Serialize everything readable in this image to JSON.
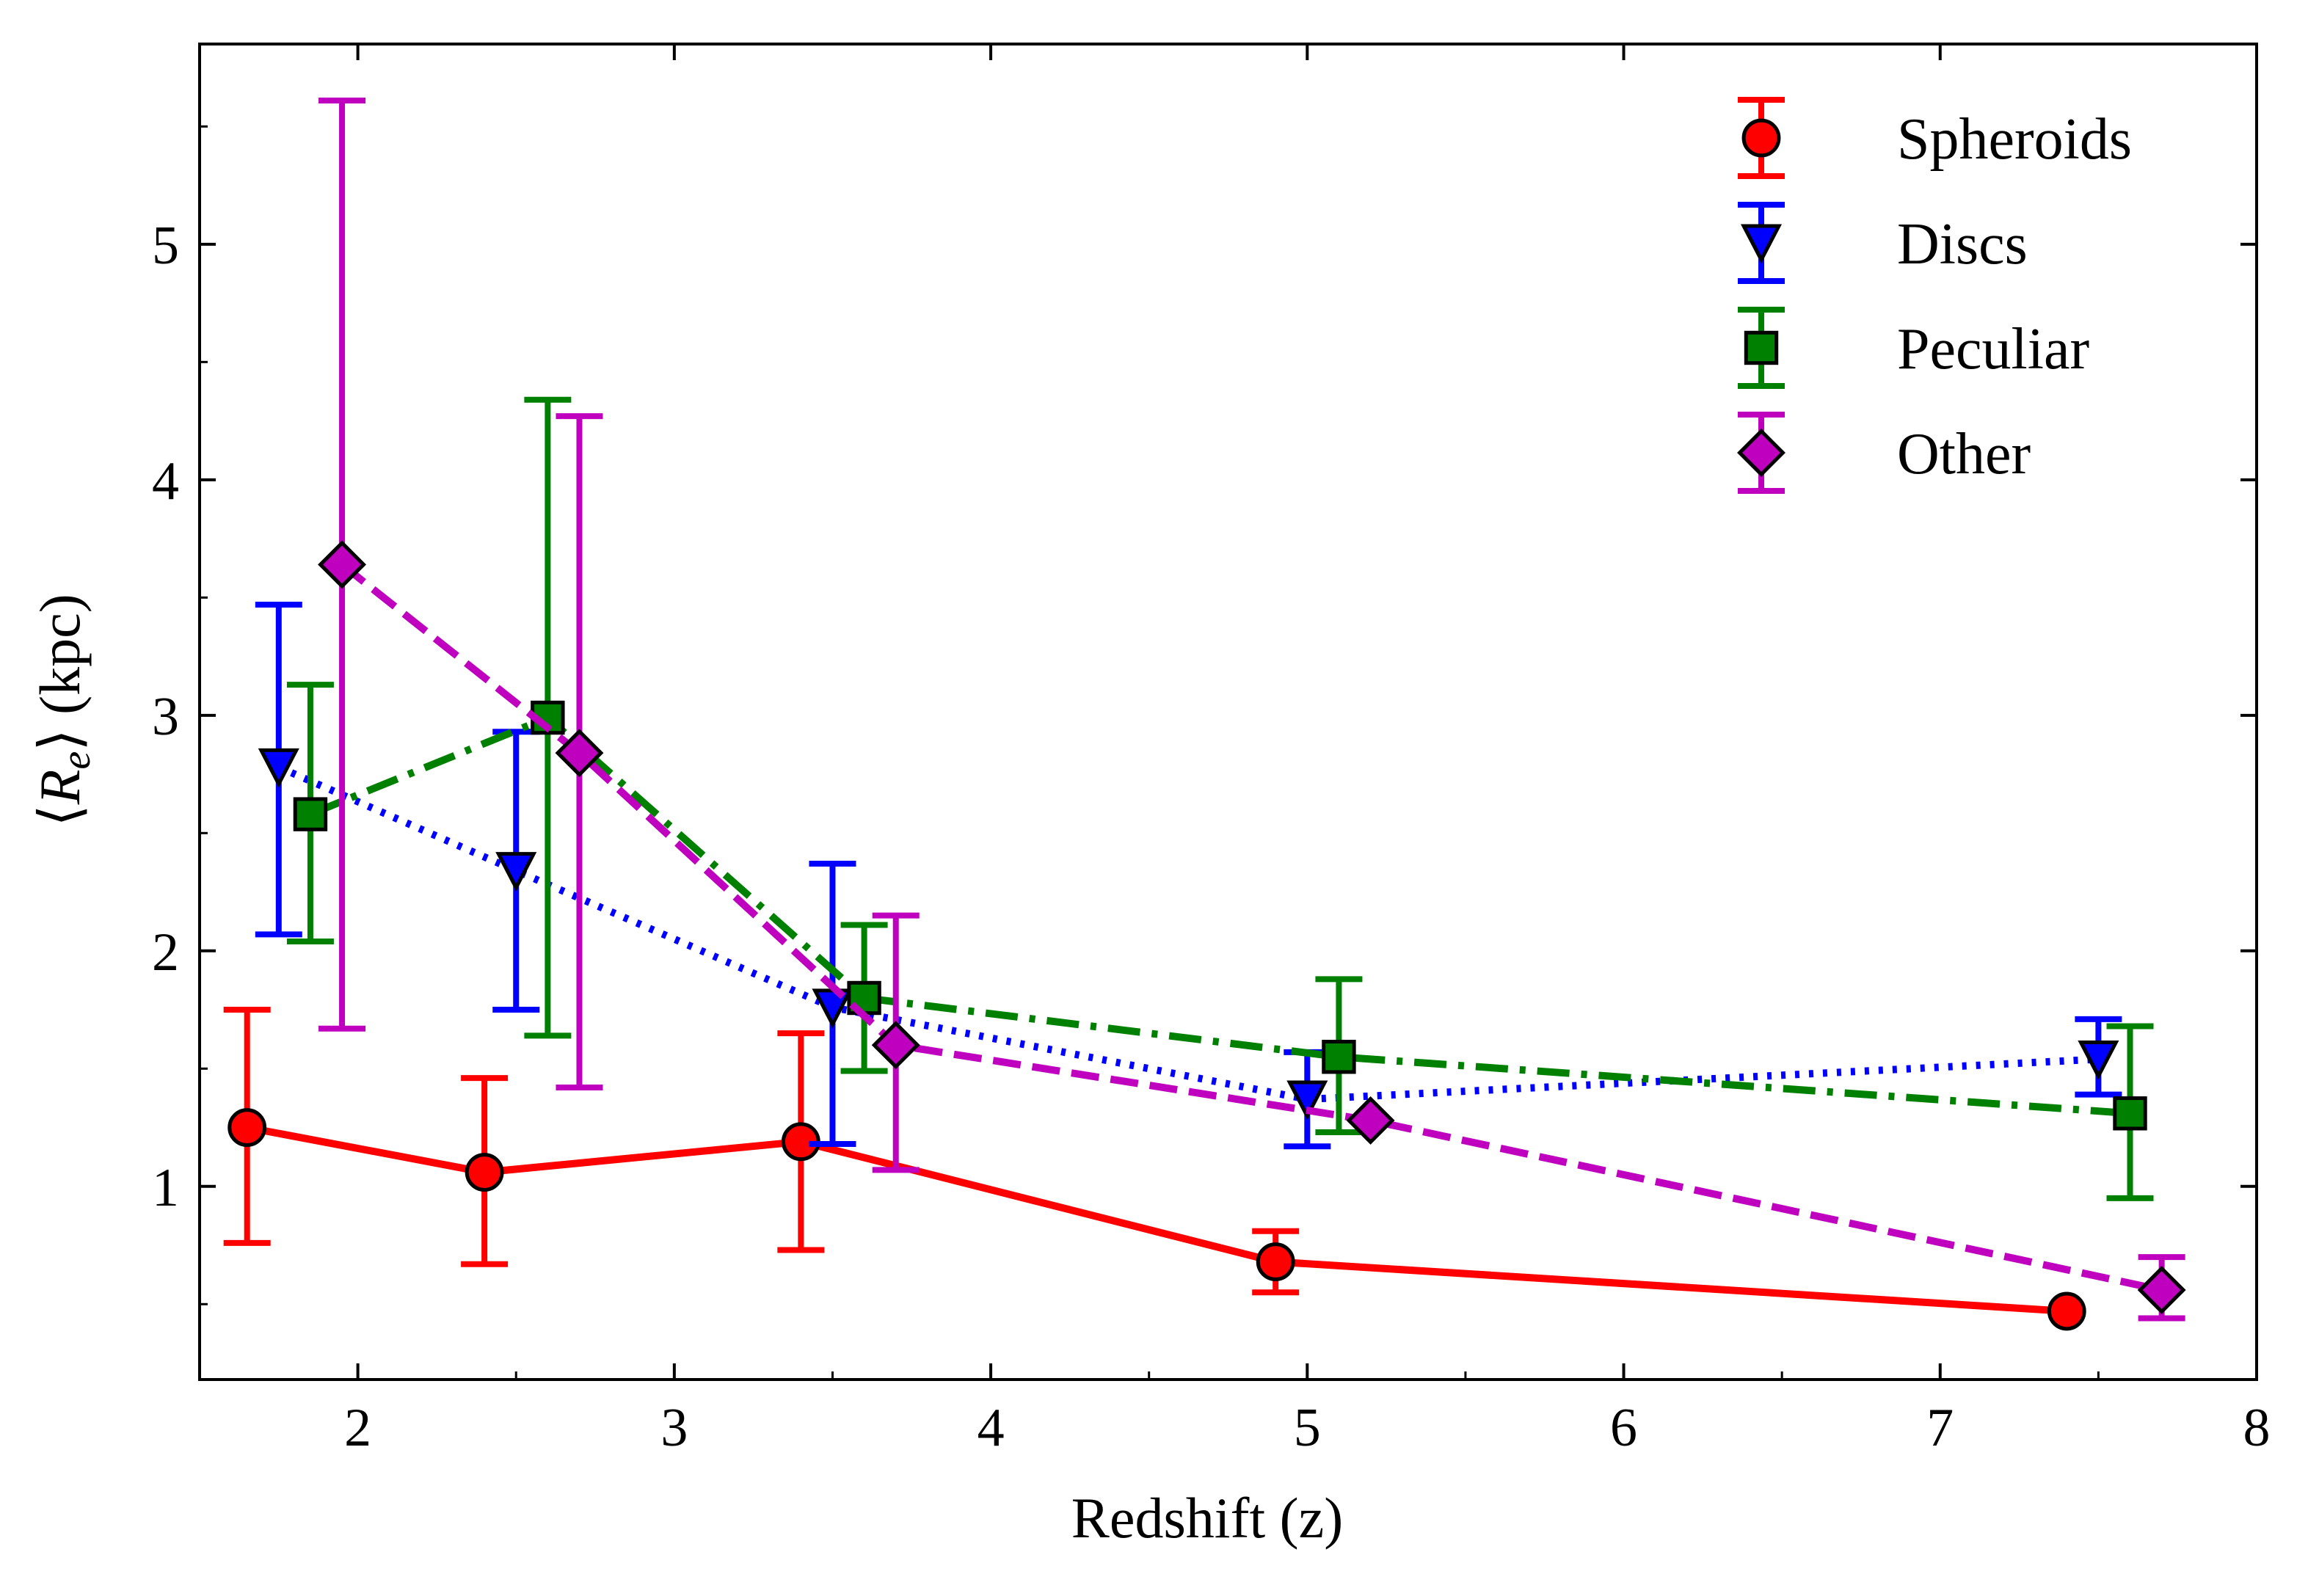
{
  "chart_data": {
    "type": "line",
    "xlabel": "Redshift (z)",
    "ylabel_parts": {
      "left_bracket": "⟨",
      "symbol": "R",
      "subscript": "e",
      "right_bracket": "⟩",
      "unit": "(kpc)"
    },
    "xlim": [
      1.5,
      8.0
    ],
    "ylim": [
      0.18,
      5.85
    ],
    "xticks": [
      2,
      3,
      4,
      5,
      6,
      7,
      8
    ],
    "xtick_labels": [
      "2",
      "3",
      "4",
      "5",
      "6",
      "7",
      "8"
    ],
    "yticks": [
      1,
      2,
      3,
      4,
      5
    ],
    "ytick_labels": [
      "1",
      "2",
      "3",
      "4",
      "5"
    ],
    "legend_position": "upper right",
    "series": [
      {
        "name": "Spheroids",
        "color": "#ff0000",
        "linestyle": "solid",
        "marker": "circle",
        "x": [
          1.65,
          2.4,
          3.4,
          4.9,
          7.4
        ],
        "y": [
          1.25,
          1.06,
          1.19,
          0.68,
          0.47
        ],
        "err_low": [
          0.76,
          0.67,
          0.73,
          0.55,
          0.47
        ],
        "err_high": [
          1.75,
          1.46,
          1.65,
          0.81,
          0.47
        ]
      },
      {
        "name": "Discs",
        "color": "#0000ff",
        "linestyle": "dotted",
        "marker": "triangle-down",
        "x": [
          1.75,
          2.5,
          3.5,
          5.0,
          7.5
        ],
        "y": [
          2.78,
          2.34,
          1.76,
          1.37,
          1.54
        ],
        "err_low": [
          2.07,
          1.75,
          1.18,
          1.17,
          1.39
        ],
        "err_high": [
          3.47,
          2.93,
          2.37,
          1.57,
          1.71
        ]
      },
      {
        "name": "Peculiar",
        "color": "#008000",
        "linestyle": "dashdot",
        "marker": "square",
        "x": [
          1.85,
          2.6,
          3.6,
          5.1,
          7.6
        ],
        "y": [
          2.58,
          2.99,
          1.8,
          1.55,
          1.31
        ],
        "err_low": [
          2.04,
          1.64,
          1.49,
          1.23,
          0.95
        ],
        "err_high": [
          3.13,
          4.34,
          2.11,
          1.88,
          1.68
        ]
      },
      {
        "name": "Other",
        "color": "#bf00bf",
        "linestyle": "dashed",
        "marker": "diamond",
        "x": [
          1.95,
          2.7,
          3.7,
          5.2,
          7.7
        ],
        "y": [
          3.64,
          2.84,
          1.6,
          1.28,
          0.56
        ],
        "err_low": [
          1.67,
          1.42,
          1.07,
          1.28,
          0.44
        ],
        "err_high": [
          5.61,
          4.27,
          2.15,
          1.28,
          0.7
        ]
      }
    ]
  }
}
